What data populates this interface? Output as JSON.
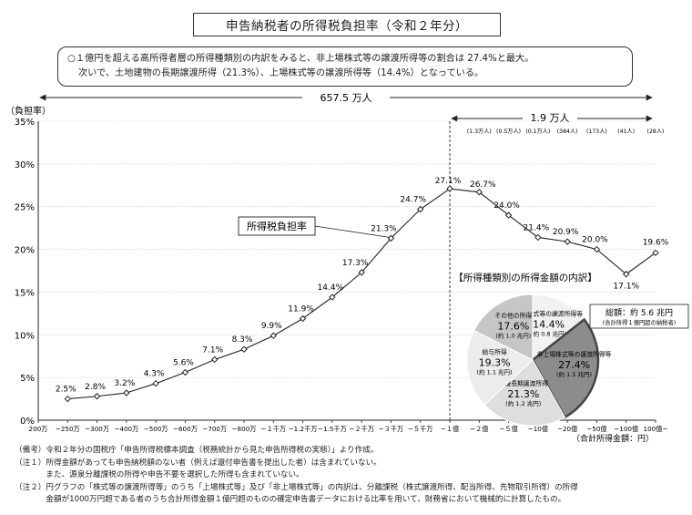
{
  "title": "申告納税者の所得税負担率（令和２年分）",
  "summary": {
    "line1": "○１億円を超える高所得者層の所得種類別の内訳をみると、非上場株式等の譲渡所得等の割合は 27.4%と最大。",
    "line2": "次いで、土地建物の長期譲渡所得（21.3%）、上場株式等の譲渡所得等（14.4%）となっている。"
  },
  "spans": {
    "total": "657.5 万人",
    "high": "1.9 万人"
  },
  "chart_data": {
    "type": "line",
    "ylabel": "（負担率）",
    "xlabel": "（合計所得金額：円）",
    "ylim": [
      0,
      35
    ],
    "yticks": [
      "0%",
      "5%",
      "10%",
      "15%",
      "20%",
      "25%",
      "30%",
      "35%"
    ],
    "grid": true,
    "series_label": "所得税負担率",
    "categories": [
      "200万",
      "~250万",
      "~300万",
      "~400万",
      "~500万",
      "~600万",
      "~700万",
      "~800万",
      "~１千万",
      "~1.2千万",
      "~1.5千万",
      "~２千万",
      "~３千万",
      "~５千万",
      "~１億",
      "~２億",
      "~５億",
      "~10億",
      "~20億",
      "~50億",
      "~100億",
      "100億~"
    ],
    "points": [
      {
        "x": "~250万",
        "y": 2.5,
        "label": "2.5%"
      },
      {
        "x": "~300万",
        "y": 2.8,
        "label": "2.8%"
      },
      {
        "x": "~400万",
        "y": 3.2,
        "label": "3.2%"
      },
      {
        "x": "~500万",
        "y": 4.3,
        "label": "4.3%"
      },
      {
        "x": "~600万",
        "y": 5.6,
        "label": "5.6%"
      },
      {
        "x": "~700万",
        "y": 7.1,
        "label": "7.1%"
      },
      {
        "x": "~800万",
        "y": 8.3,
        "label": "8.3%"
      },
      {
        "x": "~１千万",
        "y": 9.9,
        "label": "9.9%"
      },
      {
        "x": "~1.2千万",
        "y": 11.9,
        "label": "11.9%"
      },
      {
        "x": "~1.5千万",
        "y": 14.4,
        "label": "14.4%"
      },
      {
        "x": "~２千万",
        "y": 17.3,
        "label": "17.3%"
      },
      {
        "x": "~３千万",
        "y": 21.3,
        "label": "21.3%"
      },
      {
        "x": "~５千万",
        "y": 24.7,
        "label": "24.7%"
      },
      {
        "x": "~１億",
        "y": 27.1,
        "label": "27.1%"
      },
      {
        "x": "~２億",
        "y": 26.7,
        "label": "26.7%"
      },
      {
        "x": "~５億",
        "y": 24.0,
        "label": "24.0%"
      },
      {
        "x": "~10億",
        "y": 21.4,
        "label": "21.4%"
      },
      {
        "x": "~20億",
        "y": 20.9,
        "label": "20.9%"
      },
      {
        "x": "~50億",
        "y": 20.0,
        "label": "20.0%"
      },
      {
        "x": "~100億",
        "y": 17.1,
        "label": "17.1%"
      },
      {
        "x": "100億~",
        "y": 19.6,
        "label": "19.6%"
      }
    ],
    "counts": [
      "(1.3万人)",
      "(0.5万人)",
      "(0.1万人)",
      "(384人)",
      "(173人)",
      "(41人)",
      "(28人)"
    ],
    "pie": {
      "title": "【所得種類別の所得金額の内訳】",
      "total_label": "総額：約 5.6 兆円",
      "total_note": "(合計所得１億円超の納税者)",
      "slices": [
        {
          "name": "上場株式等の譲渡所得等",
          "value": 14.4,
          "pct": "14.4%",
          "amount": "(約 0.8 兆円)",
          "color": "#f2f2f2"
        },
        {
          "name": "非上場株式等の譲渡所得等",
          "value": 27.4,
          "pct": "27.4%",
          "amount": "(約 1.5 兆円)",
          "color": "#8c8c8c"
        },
        {
          "name": "分離長期譲渡所得",
          "value": 21.3,
          "pct": "21.3%",
          "amount": "(約 1.2 兆円)",
          "color": "#dedede"
        },
        {
          "name": "給与所得",
          "value": 19.3,
          "pct": "19.3%",
          "amount": "(約 1.1 兆円)",
          "color": "#ececec"
        },
        {
          "name": "その他の所得",
          "value": 17.6,
          "pct": "17.6%",
          "amount": "(約 1.0 兆円)",
          "color": "#c6c6c6"
        }
      ]
    }
  },
  "notes": [
    "（備考）令和２年分の国税庁「申告所得税標本調査（税務統計から見た申告所得税の実態）」より作成。",
    "（注１）所得金額があっても申告納税額のない者（例えば還付申告書を提出した者）は含まれていない。",
    "　　　　また、源泉分離課税の所得や申告不要を選択した所得も含まれていない。",
    "（注２）円グラフの「株式等の譲渡所得等」のうち「上場株式等」及び「非上場株式等」の内訳は、分離課税（株式譲渡所得、配当所得、先物取引所得）の所得",
    "　　　　金額が1000万円超である者のうち合計所得金額１億円超のものの確定申告書データにおける比率を用いて、財務省において機械的に計算したもの。"
  ]
}
